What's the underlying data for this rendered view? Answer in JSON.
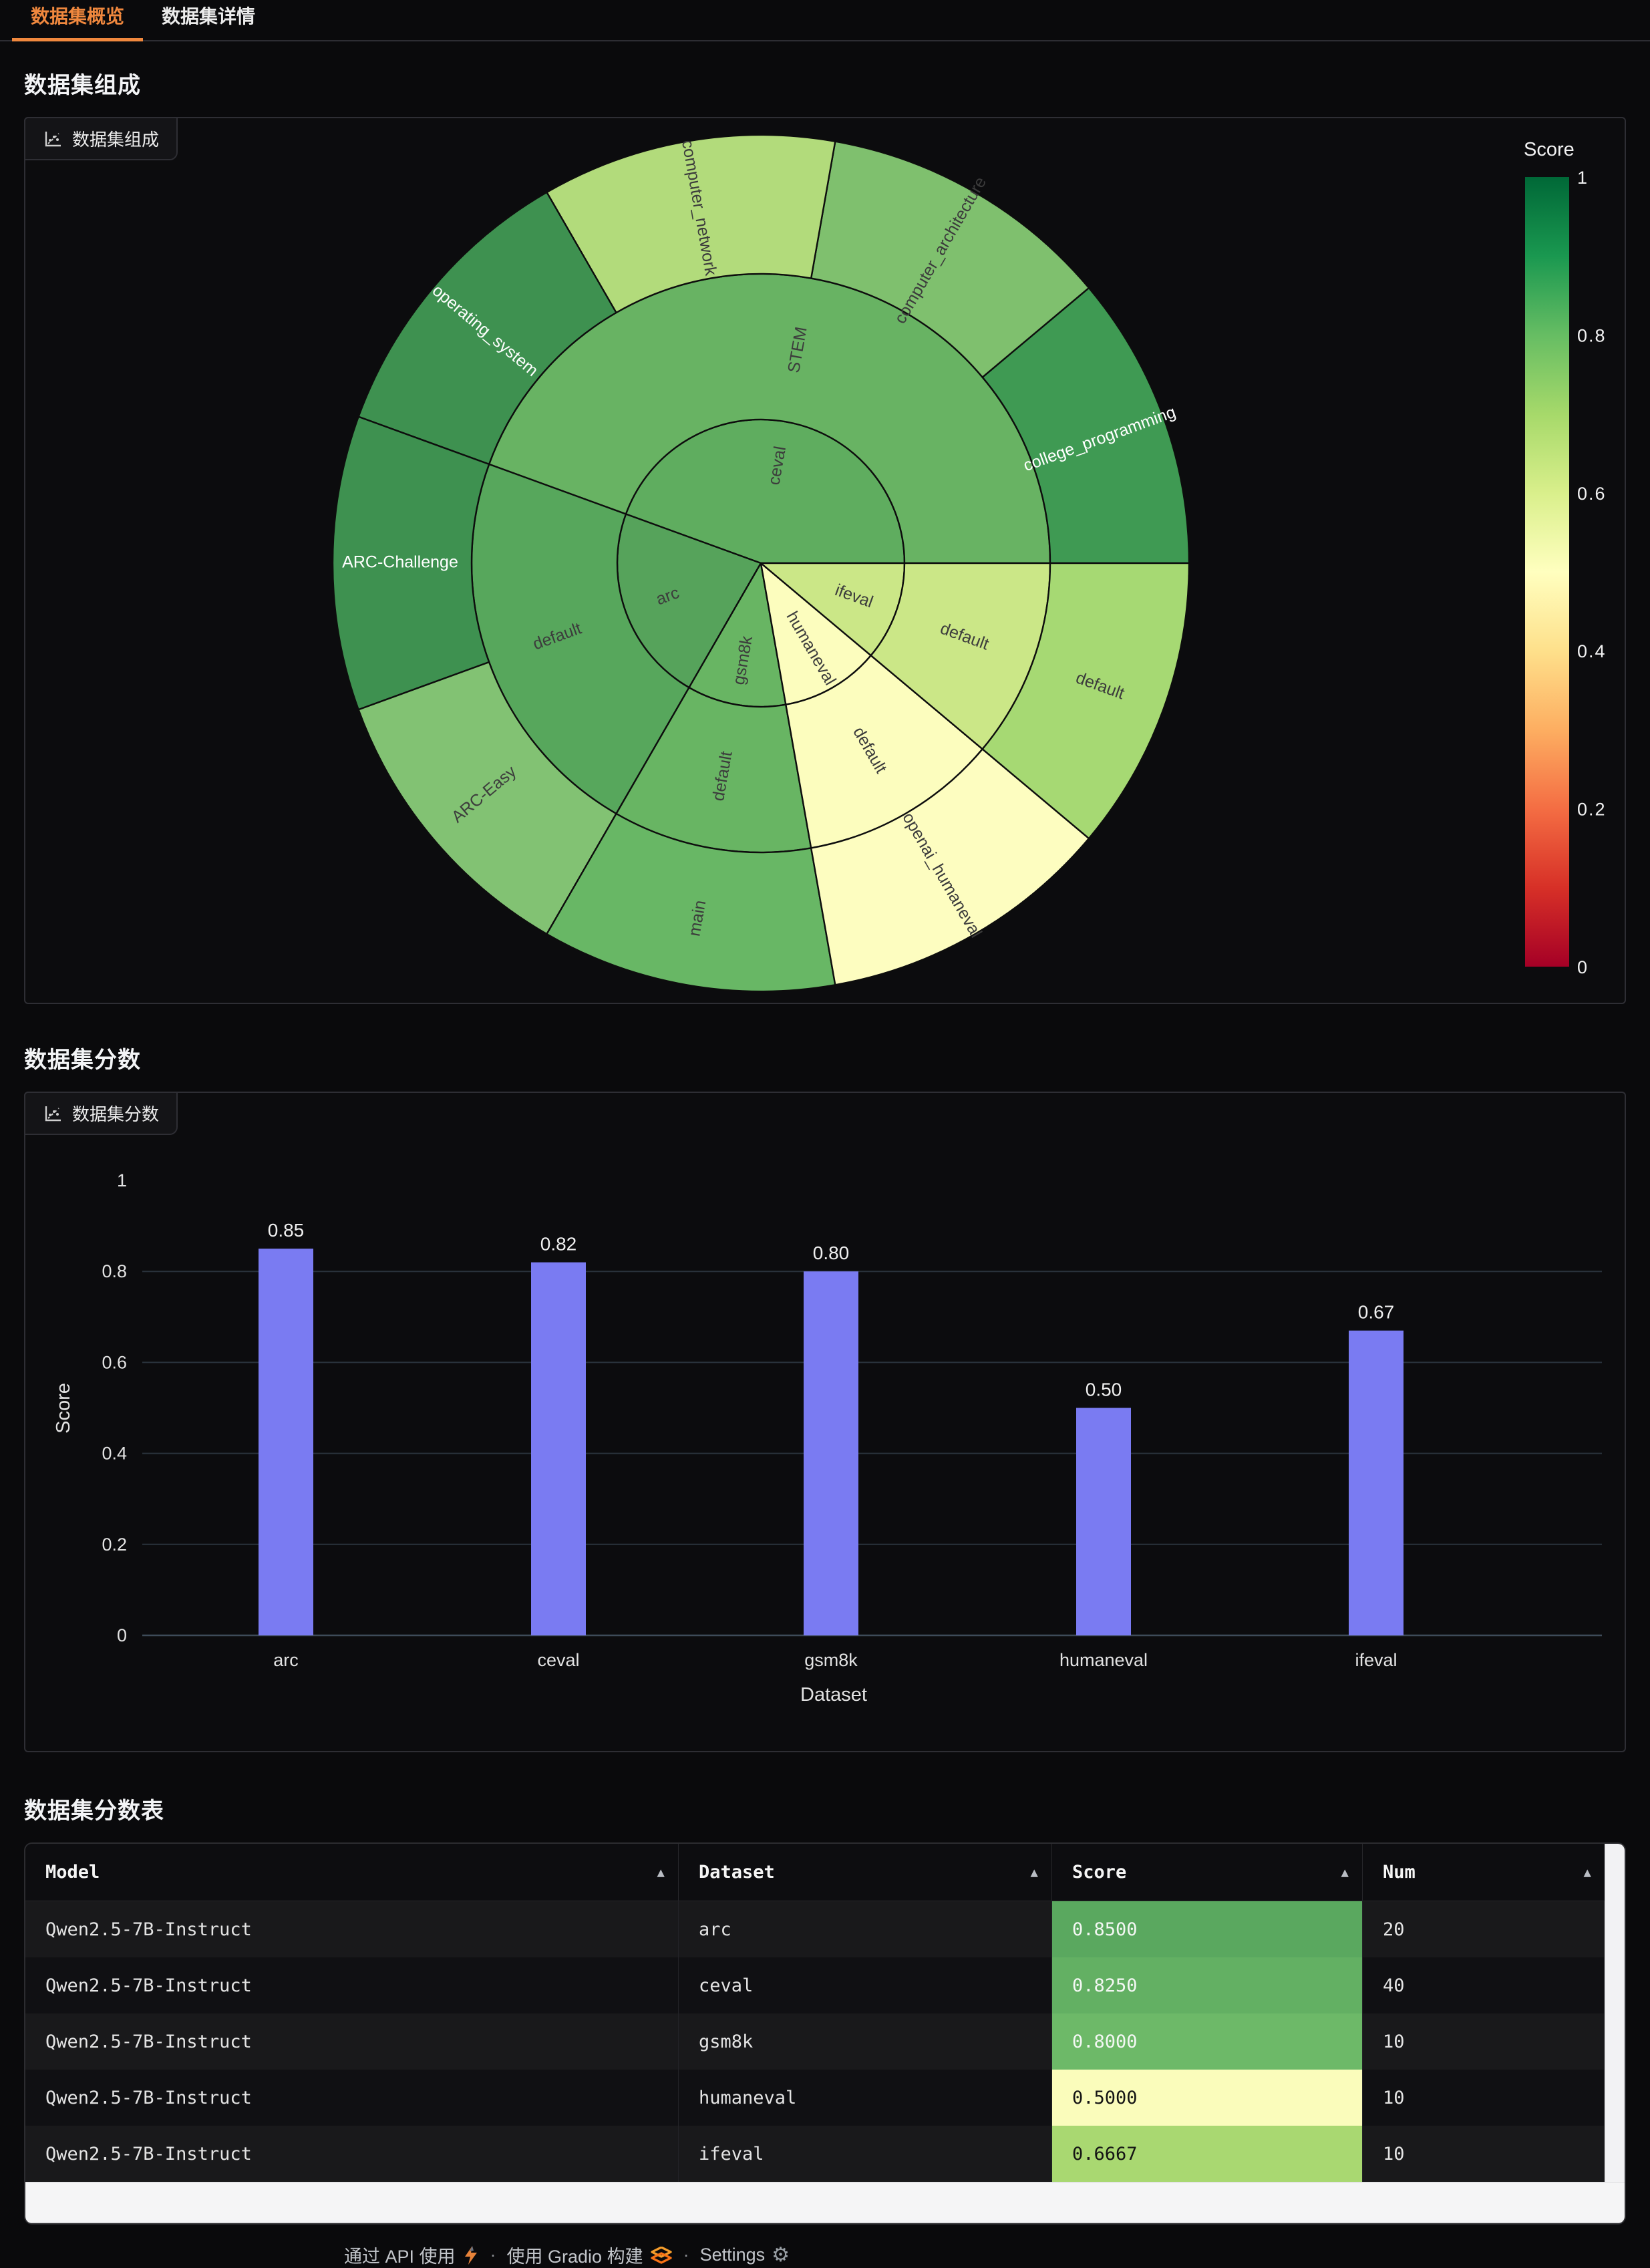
{
  "tabs": {
    "overview": "数据集概览",
    "detail": "数据集详情"
  },
  "sections": {
    "composition": {
      "heading": "数据集组成",
      "badge": "数据集组成"
    },
    "scores": {
      "heading": "数据集分数",
      "badge": "数据集分数"
    },
    "score_table": {
      "heading": "数据集分数表"
    }
  },
  "colors": {
    "accent_orange": "#F0883E",
    "bar_fill": "#7A7BF2",
    "grid_line": "#2A333C",
    "zero_line": "#3E4B59",
    "sunburst_stroke": "#0d0d0d",
    "dark_label": "#3C3C3C",
    "white_label": "#FFFFFF",
    "tick_text": "#e8e8e8"
  },
  "chart_data": [
    {
      "type": "sunburst",
      "title": "数据集组成",
      "rings_note": "inner ring=dataset, middle ring=subset, outer ring=split; angles in degrees CCW from east",
      "radii": [
        0,
        215,
        433,
        641
      ],
      "nodes": [
        {
          "label": "ceval",
          "ring": 0,
          "a0": 0,
          "a1": 160,
          "color": "#5FAD5F",
          "label_color": "dark"
        },
        {
          "label": "arc",
          "ring": 0,
          "a0": 160,
          "a1": 240,
          "color": "#56A35B",
          "label_color": "dark"
        },
        {
          "label": "gsm8k",
          "ring": 0,
          "a0": 240,
          "a1": 280,
          "color": "#68B563",
          "label_color": "dark"
        },
        {
          "label": "humaneval",
          "ring": 0,
          "a0": 280,
          "a1": 320,
          "color": "#FCFDBE",
          "label_color": "dark"
        },
        {
          "label": "ifeval",
          "ring": 0,
          "a0": 320,
          "a1": 360,
          "color": "#CBE787",
          "label_color": "dark"
        },
        {
          "label": "STEM",
          "ring": 1,
          "a0": 0,
          "a1": 160,
          "color": "#68B363",
          "label_color": "dark"
        },
        {
          "label": "default",
          "ring": 1,
          "a0": 160,
          "a1": 240,
          "color": "#57A75C",
          "label_color": "dark"
        },
        {
          "label": "default",
          "ring": 1,
          "a0": 240,
          "a1": 280,
          "color": "#68B563",
          "label_color": "dark"
        },
        {
          "label": "default",
          "ring": 1,
          "a0": 280,
          "a1": 320,
          "color": "#FCFDBE",
          "label_color": "dark"
        },
        {
          "label": "default",
          "ring": 1,
          "a0": 320,
          "a1": 360,
          "color": "#CBE787",
          "label_color": "dark"
        },
        {
          "label": "college_programming",
          "ring": 2,
          "a0": 0,
          "a1": 40,
          "color": "#3F9A53",
          "label_color": "white"
        },
        {
          "label": "computer_architecture",
          "ring": 2,
          "a0": 40,
          "a1": 80,
          "color": "#7FC06E",
          "label_color": "dark"
        },
        {
          "label": "computer_network",
          "ring": 2,
          "a0": 80,
          "a1": 120,
          "color": "#B2DB7B",
          "label_color": "dark"
        },
        {
          "label": "operating_system",
          "ring": 2,
          "a0": 120,
          "a1": 160,
          "color": "#3E9150",
          "label_color": "white"
        },
        {
          "label": "ARC-Challenge",
          "ring": 2,
          "a0": 160,
          "a1": 200,
          "color": "#3E9150",
          "label_color": "white"
        },
        {
          "label": "ARC-Easy",
          "ring": 2,
          "a0": 200,
          "a1": 240,
          "color": "#82C273",
          "label_color": "dark"
        },
        {
          "label": "main",
          "ring": 2,
          "a0": 240,
          "a1": 280,
          "color": "#68B765",
          "label_color": "dark"
        },
        {
          "label": "openai_humaneval",
          "ring": 2,
          "a0": 280,
          "a1": 320,
          "color": "#FDFDC0",
          "label_color": "dark"
        },
        {
          "label": "default",
          "ring": 2,
          "a0": 320,
          "a1": 360,
          "color": "#A6D973",
          "label_color": "dark"
        }
      ],
      "colorbar": {
        "title": "Score",
        "ticks": [
          "1",
          "0.8",
          "0.6",
          "0.4",
          "0.2",
          "0"
        ],
        "range": [
          0,
          1
        ],
        "gradient_top_to_bottom": [
          "#006837",
          "#1a9850",
          "#66bd63",
          "#a6d96a",
          "#d9ef8b",
          "#ffffbf",
          "#fee08b",
          "#fdae61",
          "#f46d43",
          "#d73027",
          "#a50026"
        ]
      }
    },
    {
      "type": "bar",
      "title": "数据集分数",
      "categories": [
        "arc",
        "ceval",
        "gsm8k",
        "humaneval",
        "ifeval"
      ],
      "values": [
        0.85,
        0.82,
        0.8,
        0.5,
        0.67
      ],
      "value_labels": [
        "0.85",
        "0.82",
        "0.80",
        "0.50",
        "0.67"
      ],
      "xlabel": "Dataset",
      "ylabel": "Score",
      "ylim": [
        0,
        1
      ],
      "yticks": [
        "0",
        "0.2",
        "0.4",
        "0.6",
        "0.8",
        "1"
      ],
      "grid": true,
      "legend": false,
      "bar_color": "#7A7BF2"
    }
  ],
  "table": {
    "columns": [
      "Model",
      "Dataset",
      "Score",
      "Num"
    ],
    "sort_arrow": "▲",
    "rows": [
      {
        "cells": [
          "Qwen2.5-7B-Instruct",
          "arc",
          "0.8500",
          "20"
        ],
        "score_bg": "#5AA85F",
        "score_color": "#F3F7F3"
      },
      {
        "cells": [
          "Qwen2.5-7B-Instruct",
          "ceval",
          "0.8250",
          "40"
        ],
        "score_bg": "#63B063",
        "score_color": "#F3F7F3"
      },
      {
        "cells": [
          "Qwen2.5-7B-Instruct",
          "gsm8k",
          "0.8000",
          "10"
        ],
        "score_bg": "#6DB968",
        "score_color": "#F3F7F3"
      },
      {
        "cells": [
          "Qwen2.5-7B-Instruct",
          "humaneval",
          "0.5000",
          "10"
        ],
        "score_bg": "#FAFCBB",
        "score_color": "#141414"
      },
      {
        "cells": [
          "Qwen2.5-7B-Instruct",
          "ifeval",
          "0.6667",
          "10"
        ],
        "score_bg": "#A9D871",
        "score_color": "#141414"
      }
    ]
  },
  "footer": {
    "api_label": "通过 API 使用",
    "dot1": "·",
    "built_label": "使用 Gradio 构建",
    "dot2": "·",
    "settings_label": "Settings"
  }
}
